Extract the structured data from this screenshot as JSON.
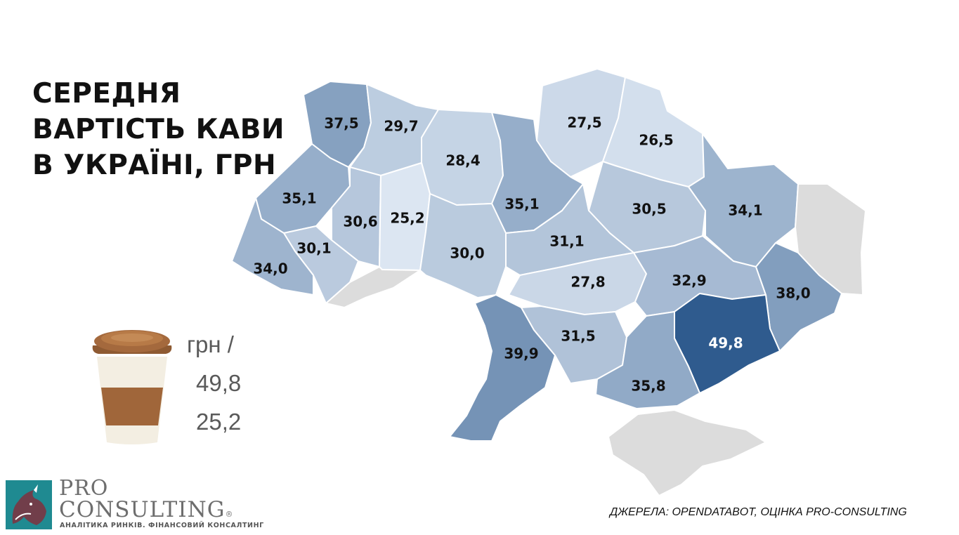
{
  "title_lines": [
    "СЕРЕДНЯ",
    "ВАРТІСТЬ КАВИ",
    "В УКРАЇНІ, ГРН"
  ],
  "legend": {
    "unit": "грн /",
    "max": "49,8",
    "min": "25,2"
  },
  "source": "ДЖЕРЕЛА: OPENDATABOT, ОЦІНКА PRO-CONSULTING",
  "brand": {
    "line1": "PRO",
    "line2": "CONSULTING",
    "registered": "®",
    "tagline": "АНАЛІТИКА РИНКІВ. ФІНАНСОВИЙ КОНСАЛТИНГ"
  },
  "colors": {
    "min": "#dce6f2",
    "max": "#2f5b8e",
    "no_data": "#dcdcdc",
    "dark_text": "#111111",
    "light_text": "#ffffff"
  },
  "chart_data": {
    "type": "choropleth",
    "value_range": [
      25.2,
      49.8
    ],
    "regions": [
      {
        "id": "volyn",
        "value": 37.5,
        "label": "37,5"
      },
      {
        "id": "rivne",
        "value": 29.7,
        "label": "29,7"
      },
      {
        "id": "zhytomyr",
        "value": 28.4,
        "label": "28,4"
      },
      {
        "id": "chernihiv",
        "value": 27.5,
        "label": "27,5"
      },
      {
        "id": "sumy",
        "value": 26.5,
        "label": "26,5"
      },
      {
        "id": "lviv",
        "value": 35.1,
        "label": "35,1"
      },
      {
        "id": "ternopil",
        "value": 30.6,
        "label": "30,6"
      },
      {
        "id": "khmelnytskyi",
        "value": 25.2,
        "label": "25,2"
      },
      {
        "id": "kyiv",
        "value": 35.1,
        "label": "35,1"
      },
      {
        "id": "poltava",
        "value": 30.5,
        "label": "30,5"
      },
      {
        "id": "kharkiv",
        "value": 34.1,
        "label": "34,1"
      },
      {
        "id": "ivano-frankivsk",
        "value": 30.1,
        "label": "30,1"
      },
      {
        "id": "zakarpattia",
        "value": 34.0,
        "label": "34,0"
      },
      {
        "id": "vinnytsia",
        "value": 30.0,
        "label": "30,0"
      },
      {
        "id": "cherkasy",
        "value": 31.1,
        "label": "31,1"
      },
      {
        "id": "kirovohrad",
        "value": 27.8,
        "label": "27,8"
      },
      {
        "id": "dnipropetrovsk",
        "value": 32.9,
        "label": "32,9"
      },
      {
        "id": "donetsk",
        "value": 38.0,
        "label": "38,0"
      },
      {
        "id": "odesa",
        "value": 39.9,
        "label": "39,9"
      },
      {
        "id": "mykolaiv",
        "value": 31.5,
        "label": "31,5"
      },
      {
        "id": "zaporizhzhia",
        "value": 49.8,
        "label": "49,8"
      },
      {
        "id": "kherson",
        "value": 35.8,
        "label": "35,8"
      },
      {
        "id": "chernivtsi",
        "value": null,
        "label": ""
      },
      {
        "id": "luhansk",
        "value": null,
        "label": ""
      },
      {
        "id": "crimea",
        "value": null,
        "label": ""
      }
    ]
  }
}
